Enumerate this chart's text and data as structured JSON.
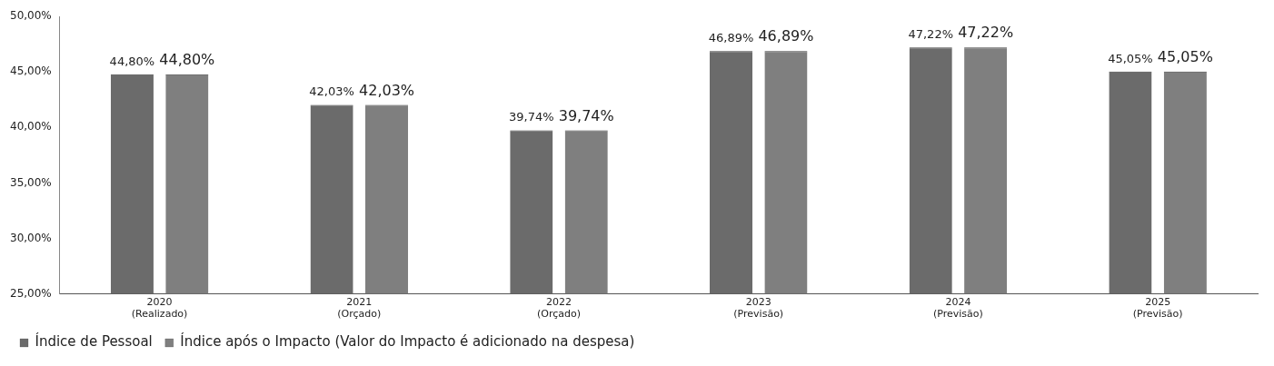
{
  "chart_data": {
    "type": "bar",
    "categories": [
      "2020\n(Realizado)",
      "2021\n(Orçado)",
      "2022\n(Orçado)",
      "2023\n(Previsão)",
      "2024\n(Previsão)",
      "2025\n(Previsão)"
    ],
    "series": [
      {
        "name": "Índice de Pessoal",
        "color": "#6b6b6b",
        "values": [
          44.8,
          42.03,
          39.74,
          46.89,
          47.22,
          45.05
        ],
        "value_labels": [
          "44,80%",
          "42,03%",
          "39,74%",
          "46,89%",
          "47,22%",
          "45,05%"
        ]
      },
      {
        "name": "Índice após o Impacto (Valor do Impacto é adicionado na despesa)",
        "color": "#7f7f7f",
        "values": [
          44.8,
          42.03,
          39.74,
          46.89,
          47.22,
          45.05
        ],
        "value_labels": [
          "44,80%",
          "42,03%",
          "39,74%",
          "46,89%",
          "47,22%",
          "45,05%"
        ]
      }
    ],
    "ylim": [
      25,
      50
    ],
    "yticks": [
      {
        "value": 25,
        "label": "25,00%"
      },
      {
        "value": 30,
        "label": "30,00%"
      },
      {
        "value": 35,
        "label": "35,00%"
      },
      {
        "value": 40,
        "label": "40,00%"
      },
      {
        "value": 45,
        "label": "45,00%"
      },
      {
        "value": 50,
        "label": "50,00%"
      }
    ],
    "grid": false,
    "legend": "bottom left"
  }
}
